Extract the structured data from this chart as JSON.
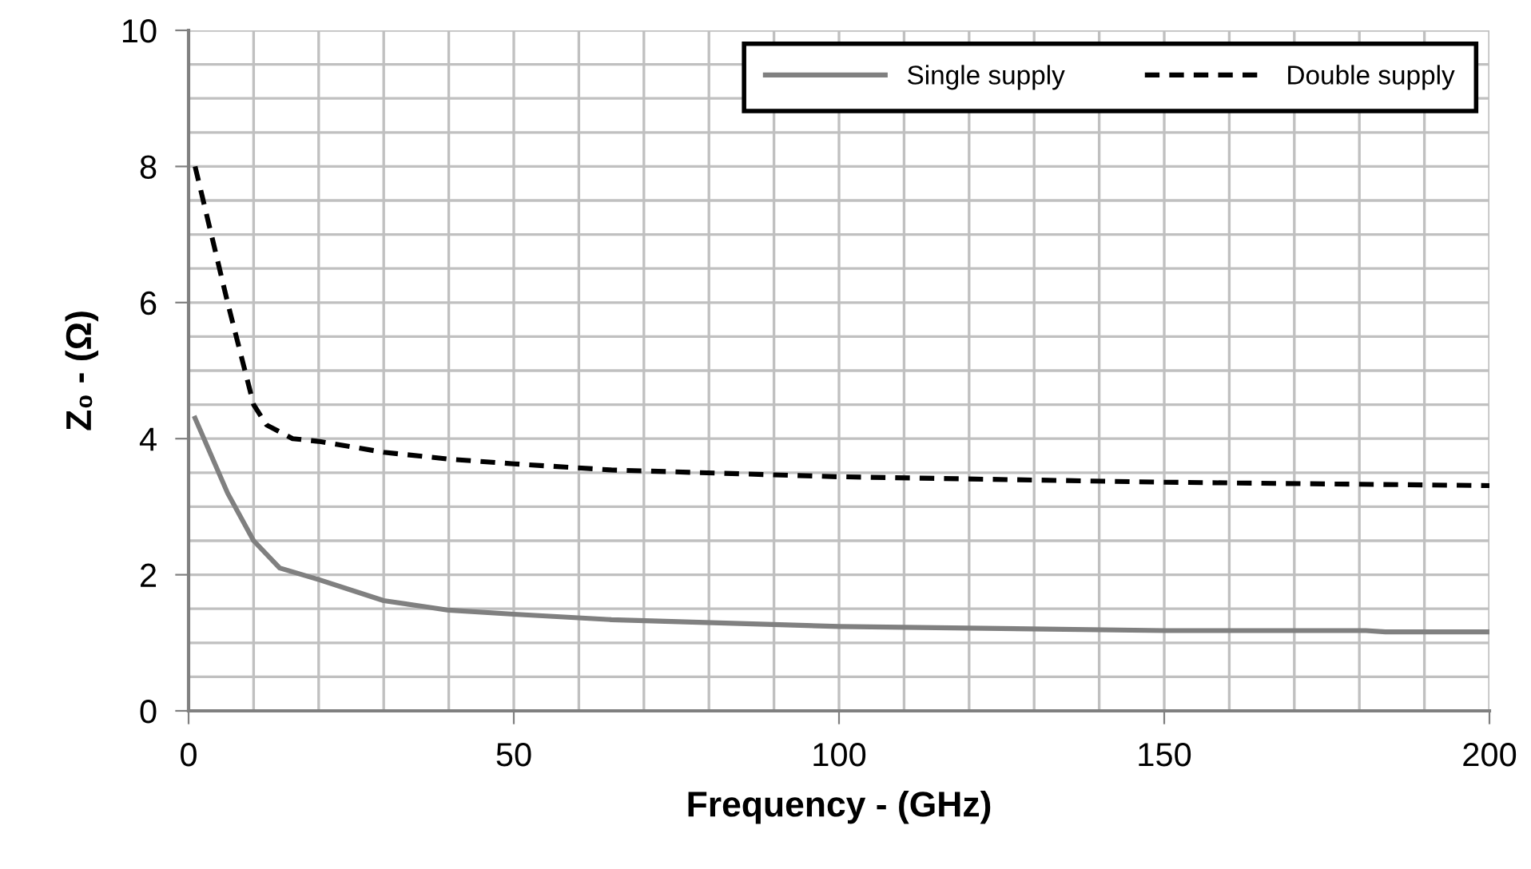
{
  "chart_data": {
    "type": "line",
    "xlabel": "Frequency - (GHz)",
    "ylabel": "Z₀ - (Ω)",
    "xlim": [
      0,
      200
    ],
    "ylim": [
      0,
      10
    ],
    "xticks": [
      0,
      {
        "value": 10,
        "label": null
      },
      {
        "value": 20,
        "label": null
      },
      {
        "value": 30,
        "label": null
      },
      {
        "value": 40,
        "label": null
      },
      50,
      {
        "value": 60,
        "label": null
      },
      {
        "value": 70,
        "label": null
      },
      {
        "value": 80,
        "label": null
      },
      {
        "value": 90,
        "label": null
      },
      100,
      {
        "value": 110,
        "label": null
      },
      {
        "value": 120,
        "label": null
      },
      {
        "value": 130,
        "label": null
      },
      {
        "value": 140,
        "label": null
      },
      150,
      {
        "value": 160,
        "label": null
      },
      {
        "value": 170,
        "label": null
      },
      {
        "value": 180,
        "label": null
      },
      {
        "value": 190,
        "label": null
      },
      200
    ],
    "yticks": [
      0,
      {
        "value": 0.5,
        "label": null
      },
      {
        "value": 1,
        "label": null
      },
      {
        "value": 1.5,
        "label": null
      },
      2,
      {
        "value": 2.5,
        "label": null
      },
      {
        "value": 3,
        "label": null
      },
      {
        "value": 3.5,
        "label": null
      },
      4,
      {
        "value": 4.5,
        "label": null
      },
      {
        "value": 5,
        "label": null
      },
      {
        "value": 5.5,
        "label": null
      },
      6,
      {
        "value": 6.5,
        "label": null
      },
      {
        "value": 7,
        "label": null
      },
      {
        "value": 7.5,
        "label": null
      },
      8,
      {
        "value": 8.5,
        "label": null
      },
      {
        "value": 9,
        "label": null
      },
      {
        "value": 9.5,
        "label": null
      },
      10
    ],
    "grid": true,
    "legend": "top right",
    "marker": "none",
    "series": [
      {
        "name": "Single supply",
        "color": "#808080",
        "line_style": "solid",
        "x": [
          1,
          6,
          10,
          14,
          20,
          30,
          40,
          50,
          65,
          100,
          150,
          181,
          184,
          200
        ],
        "values": [
          4.3,
          3.2,
          2.5,
          2.1,
          1.93,
          1.62,
          1.48,
          1.42,
          1.34,
          1.24,
          1.18,
          1.18,
          1.16,
          1.16
        ]
      },
      {
        "name": "Double supply",
        "color": "#000000",
        "line_style": "dashed",
        "x": [
          1,
          6,
          10,
          12,
          16,
          20,
          30,
          40,
          50,
          65,
          100,
          150,
          200
        ],
        "values": [
          8.0,
          6.0,
          4.5,
          4.2,
          4.0,
          3.96,
          3.8,
          3.7,
          3.63,
          3.54,
          3.44,
          3.36,
          3.31
        ]
      }
    ]
  }
}
